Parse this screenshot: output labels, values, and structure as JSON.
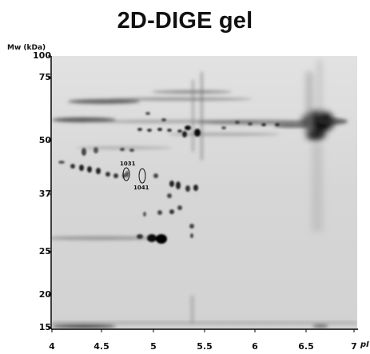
{
  "title": "2D-DIGE gel",
  "y_axis": {
    "label": "Mw (kDa)",
    "ticks": [
      "100",
      "75",
      "50",
      "37",
      "25",
      "20",
      "15"
    ]
  },
  "x_axis": {
    "unit": "pI",
    "ticks": [
      "4",
      "4.5",
      "5",
      "5.5",
      "6",
      "6.5",
      "7"
    ]
  },
  "spots": [
    {
      "label": "1031"
    },
    {
      "label": "1041"
    }
  ],
  "colors": {
    "gel_background": "#d9d9d9",
    "spot_dark": "#111111"
  }
}
